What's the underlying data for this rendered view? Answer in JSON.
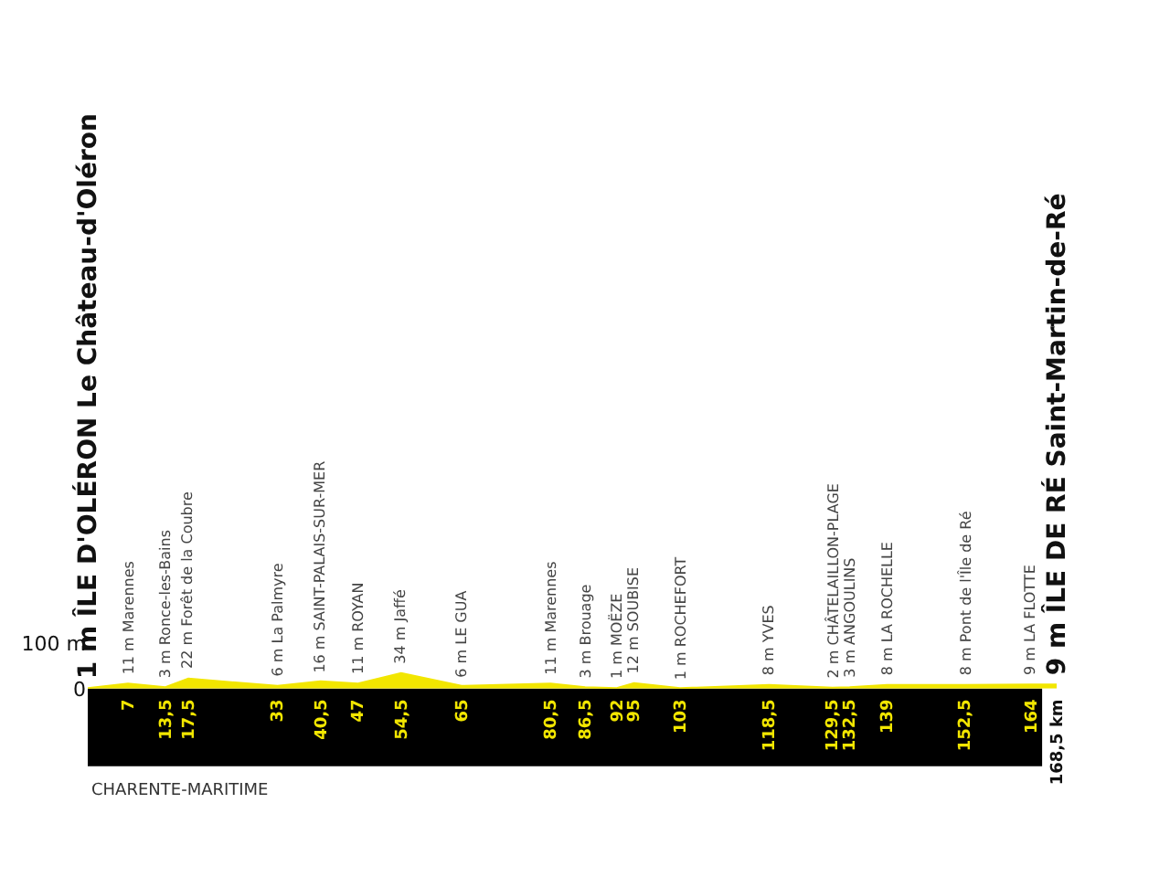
{
  "chart_data": {
    "type": "area",
    "x": [
      0,
      7,
      13.5,
      17.5,
      33,
      40.5,
      47,
      54.5,
      65,
      80.5,
      86.5,
      92,
      95,
      103,
      118.5,
      129.5,
      132.5,
      139,
      152.5,
      164,
      168.5
    ],
    "values": [
      1,
      11,
      3,
      22,
      6,
      16,
      11,
      34,
      6,
      11,
      3,
      1,
      12,
      1,
      8,
      2,
      3,
      8,
      8,
      9,
      9
    ],
    "value_labels": [
      "1 m ÎLE D'OLÉRON Le Château-d'Oléron",
      "11 m Marennes",
      "3 m Ronce-les-Bains",
      "22 m Forêt de la Coubre",
      "6 m La Palmyre",
      "16 m SAINT-PALAIS-SUR-MER",
      "11 m ROYAN",
      "34 m Jaffé",
      "6 m LE GUA",
      "11 m Marennes",
      "3 m Brouage",
      "1 m MOËZE",
      "12 m SOUBISE",
      "1 m ROCHEFORT",
      "8 m YVES",
      "2 m CHÂTELAILLON-PLAGE",
      "3 m ANGOULINS",
      "8 m LA ROCHELLE",
      "8 m Pont de l'Île de Ré",
      "9 m LA FLOTTE",
      "9 m ÎLE DE RÉ Saint-Martin-de-Ré"
    ],
    "color": "#f2e600",
    "xlim": [
      0,
      168.5
    ],
    "xticks": [
      7,
      {
        "value": 13.5,
        "label": "13,5"
      },
      {
        "value": 17.5,
        "label": "17,5"
      },
      33,
      {
        "value": 40.5,
        "label": "40,5"
      },
      47,
      {
        "value": 54.5,
        "label": "54,5"
      },
      65,
      {
        "value": 80.5,
        "label": "80,5"
      },
      {
        "value": 86.5,
        "label": "86,5"
      },
      92,
      95,
      103,
      {
        "value": 118.5,
        "label": "118,5"
      },
      {
        "value": 129.5,
        "label": "129,5"
      },
      {
        "value": 132.5,
        "label": "132,5"
      },
      139,
      {
        "value": 152.5,
        "label": "152,5"
      },
      164,
      {
        "value": 168.5,
        "label": "168,5 km"
      }
    ],
    "ylim": [
      0,
      100
    ],
    "yticks": [
      0,
      {
        "value": 100,
        "label": "100 m"
      }
    ],
    "grid": false,
    "legend": false,
    "annotations": [
      "CHARENTE-MARITIME"
    ]
  }
}
